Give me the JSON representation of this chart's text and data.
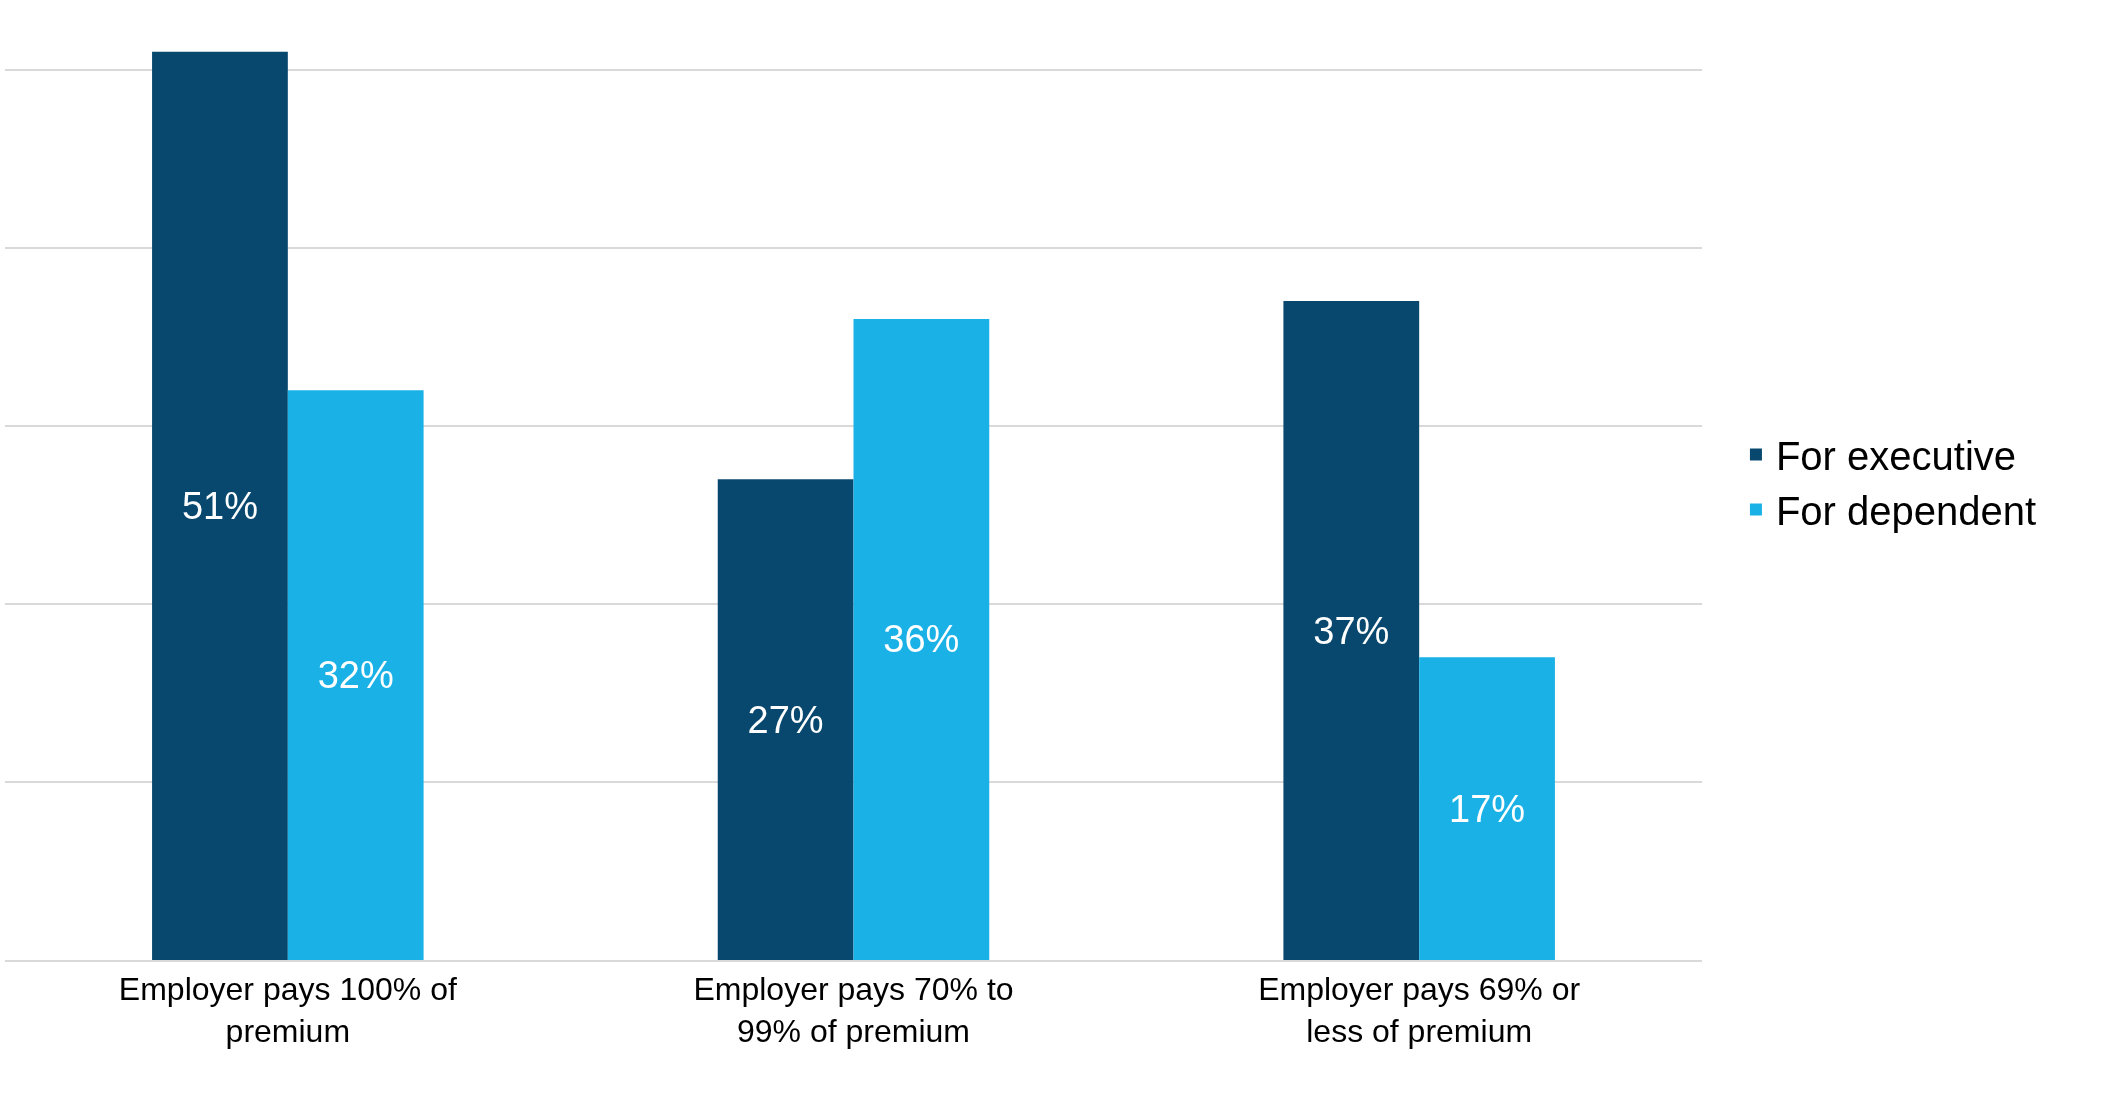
{
  "chart_data": {
    "type": "bar",
    "categories": [
      "Employer pays 100% of premium",
      "Employer pays 70% to 99% of premium",
      "Employer pays 69% or less of premium"
    ],
    "series": [
      {
        "name": "For executive",
        "color": "#08486e",
        "values": [
          51,
          27,
          37
        ],
        "value_labels": [
          "51%",
          "27%",
          "37%"
        ]
      },
      {
        "name": "For dependent",
        "color": "#1ab2e6",
        "values": [
          32,
          36,
          17
        ],
        "value_labels": [
          "32%",
          "36%",
          "17%"
        ]
      }
    ],
    "grid": "y",
    "legend": "right",
    "tick_labels": "x"
  }
}
